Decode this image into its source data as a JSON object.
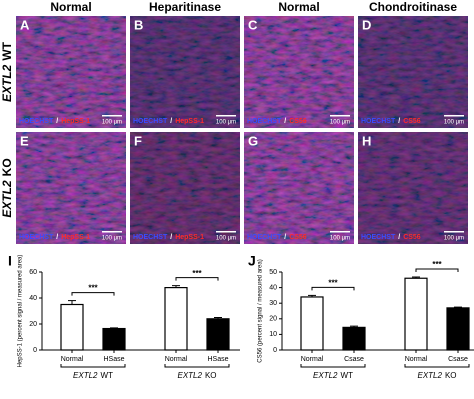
{
  "figure": {
    "column_headers": [
      "Normal",
      "Heparitinase",
      "Normal",
      "Chondroitinase"
    ],
    "row_labels": [
      {
        "gene": "EXTL2",
        "genotype": "WT"
      },
      {
        "gene": "EXTL2",
        "genotype": "KO"
      }
    ],
    "separator": "/",
    "panels": [
      {
        "letter": "A",
        "stain": "HOECHST",
        "marker": "HepSS-1",
        "scale": "100 μm"
      },
      {
        "letter": "B",
        "stain": "HOECHST",
        "marker": "HepSS-1",
        "scale": "100 μm"
      },
      {
        "letter": "C",
        "stain": "HOECHST",
        "marker": "CS56",
        "scale": "100 μm"
      },
      {
        "letter": "D",
        "stain": "HOECHST",
        "marker": "CS56",
        "scale": "100 μm"
      },
      {
        "letter": "E",
        "stain": "HOECHST",
        "marker": "HepSS-1",
        "scale": "100 μm"
      },
      {
        "letter": "F",
        "stain": "HOECHST",
        "marker": "HepSS-1",
        "scale": "100 μm"
      },
      {
        "letter": "G",
        "stain": "HOECHST",
        "marker": "CS56",
        "scale": "100 μm"
      },
      {
        "letter": "H",
        "stain": "HOECHST",
        "marker": "CS56",
        "scale": "100 μm"
      }
    ]
  },
  "chart_data": [
    {
      "type": "bar",
      "panel_label": "I",
      "ylabel": "HepSS-1 (percent signal / measured area)",
      "categories": [
        "Normal",
        "HSase",
        "Normal",
        "HSase"
      ],
      "values": [
        35,
        16.5,
        48,
        24
      ],
      "errors": [
        3,
        0.5,
        1.5,
        1
      ],
      "colors": [
        "#ffffff",
        "#000000",
        "#ffffff",
        "#000000"
      ],
      "groups": [
        {
          "gene": "EXTL2",
          "genotype": "WT"
        },
        {
          "gene": "EXTL2",
          "genotype": "KO"
        }
      ],
      "brackets": [
        "***",
        "***"
      ],
      "ylim": [
        0,
        60
      ],
      "yticks": [
        0,
        20,
        40,
        60
      ]
    },
    {
      "type": "bar",
      "panel_label": "J",
      "ylabel": "CS56 (percent signal / measured area)",
      "categories": [
        "Normal",
        "Csase",
        "Normal",
        "Csase"
      ],
      "values": [
        34,
        14.5,
        46,
        27
      ],
      "errors": [
        1,
        0.8,
        0.8,
        0.5
      ],
      "colors": [
        "#ffffff",
        "#000000",
        "#ffffff",
        "#000000"
      ],
      "groups": [
        {
          "gene": "EXTL2",
          "genotype": "WT"
        },
        {
          "gene": "EXTL2",
          "genotype": "KO"
        }
      ],
      "brackets": [
        "***",
        "***"
      ],
      "ylim": [
        0,
        50
      ],
      "yticks": [
        0,
        10,
        20,
        30,
        40,
        50
      ]
    }
  ]
}
